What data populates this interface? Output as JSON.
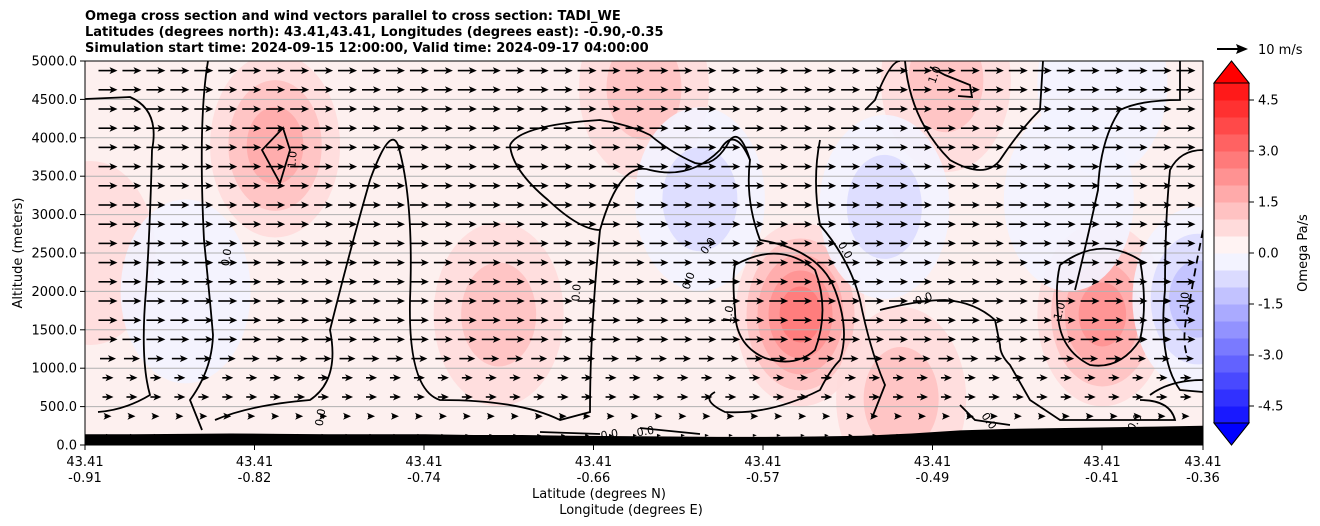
{
  "chart_data": {
    "type": "heatmap",
    "title": [
      "Omega cross section and wind vectors parallel to cross section: TADI_WE",
      "Latitudes (degrees north): 43.41,43.41, Longitudes (degrees east): -0.90,-0.35",
      "Simulation start time: 2024-09-15 12:00:00, Valid time: 2024-09-17 04:00:00"
    ],
    "ylabel": "Altitude (meters)",
    "xlabel_1": "Latitude (degrees N)",
    "xlabel_2": "Longitude (degrees E)",
    "ylim": [
      0,
      5000
    ],
    "y_ticks": [
      "0.0",
      "500.0",
      "1000.0",
      "1500.0",
      "2000.0",
      "2500.0",
      "3000.0",
      "3500.0",
      "4000.0",
      "4500.0",
      "5000.0"
    ],
    "x_ticks": [
      {
        "lat": "43.41",
        "lon": "-0.91"
      },
      {
        "lat": "43.41",
        "lon": "-0.82"
      },
      {
        "lat": "43.41",
        "lon": "-0.74"
      },
      {
        "lat": "43.41",
        "lon": "-0.66"
      },
      {
        "lat": "43.41",
        "lon": "-0.57"
      },
      {
        "lat": "43.41",
        "lon": "-0.49"
      },
      {
        "lat": "43.41",
        "lon": "-0.41"
      },
      {
        "lat": "43.41",
        "lon": "-0.36"
      }
    ],
    "colorbar": {
      "label": "Omega Pa/s",
      "range": [
        -5,
        5
      ],
      "ticks": [
        "-4.5",
        "-3.0",
        "-1.5",
        "0.0",
        "1.5",
        "3.0",
        "4.5"
      ],
      "neg_color": "#0000ff",
      "pos_color": "#ff0000"
    },
    "quiver_key": "10 m/s",
    "contour_labels": [
      "1.0",
      "1.0",
      "0.0",
      "0.0",
      "0.0",
      "0.0",
      "0.0",
      "0.0",
      "1.0",
      "0.0",
      "0.0",
      "0.0",
      "1.0",
      "-1.0",
      "0.0",
      "0.0",
      "0"
    ],
    "omega_features": [
      {
        "x": 0.17,
        "alt": 3900,
        "value": 1.4
      },
      {
        "x": 0.5,
        "alt": 4650,
        "value": 0.8
      },
      {
        "x": 0.37,
        "alt": 1700,
        "value": 1.2
      },
      {
        "x": 0.64,
        "alt": 1700,
        "value": 2.3
      },
      {
        "x": 0.91,
        "alt": 1700,
        "value": 2.2
      },
      {
        "x": 0.77,
        "alt": 4750,
        "value": 1.2
      },
      {
        "x": 0.715,
        "alt": 3100,
        "value": -1.0
      },
      {
        "x": 0.55,
        "alt": 3200,
        "value": -0.8
      },
      {
        "x": 0.995,
        "alt": 1900,
        "value": -1.5
      },
      {
        "x": 0.88,
        "alt": 3200,
        "value": -0.7
      },
      {
        "x": 0.91,
        "alt": 4700,
        "value": -0.6
      },
      {
        "x": 0.005,
        "alt": 2500,
        "value": 0.7
      },
      {
        "x": 0.73,
        "alt": 600,
        "value": 0.8
      },
      {
        "x": 0.09,
        "alt": 2000,
        "value": -0.5
      }
    ],
    "terrain_altitudes": [
      140,
      140,
      145,
      150,
      145,
      140,
      140,
      140,
      130,
      130,
      120,
      115,
      110,
      105,
      105,
      110,
      120,
      150,
      190,
      210,
      220,
      230,
      240,
      250
    ]
  }
}
